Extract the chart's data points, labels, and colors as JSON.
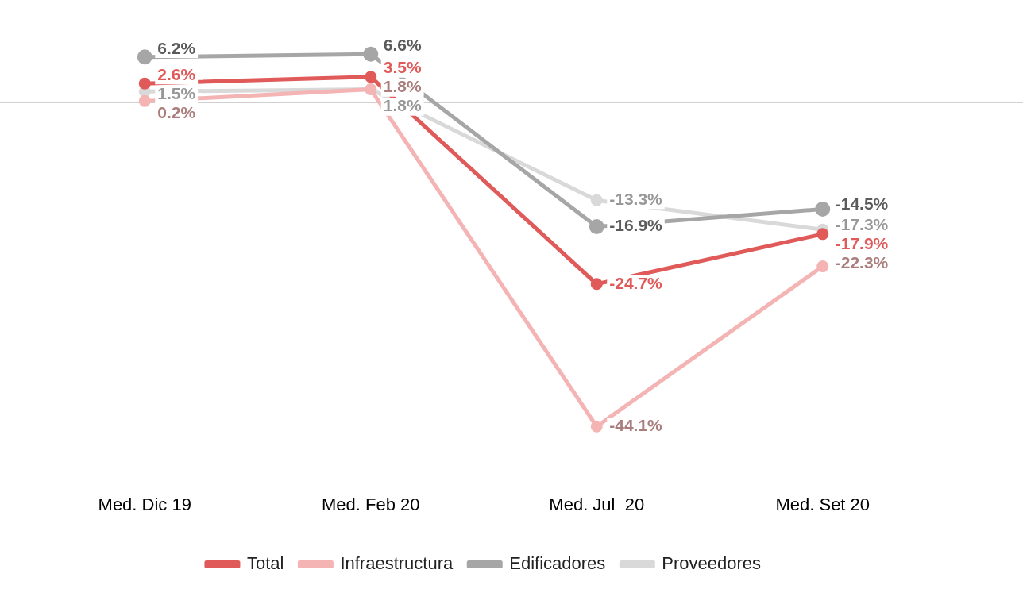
{
  "chart_data": {
    "type": "line",
    "categories": [
      "Med. Dic 19",
      "Med. Feb 20",
      "Med. Jul  20",
      "Med. Set 20"
    ],
    "series": [
      {
        "name": "Total",
        "color": "#e05a5a",
        "values": [
          2.6,
          3.5,
          -24.7,
          -17.9
        ],
        "value_labels": [
          "2.6%",
          "3.5%",
          "-24.7%",
          "-17.9%"
        ]
      },
      {
        "name": "Infraestructura",
        "color": "#f4b4b4",
        "values": [
          0.2,
          1.8,
          -44.1,
          -22.3
        ],
        "value_labels": [
          "0.2%",
          "1.8%",
          "-44.1%",
          "-22.3%"
        ]
      },
      {
        "name": "Edificadores",
        "color": "#a6a6a6",
        "values": [
          6.2,
          6.6,
          -16.9,
          -14.5
        ],
        "value_labels": [
          "6.2%",
          "6.6%",
          "-16.9%",
          "-14.5%"
        ]
      },
      {
        "name": "Proveedores",
        "color": "#d9d9d9",
        "values": [
          1.5,
          1.8,
          -13.3,
          -17.3
        ],
        "value_labels": [
          "1.5%",
          "1.8%",
          "-13.3%",
          "-17.3%"
        ]
      }
    ],
    "ref_lines": [
      {
        "axis": "y",
        "value": 0,
        "color": "#d0d0d0"
      }
    ],
    "legend": "bottom",
    "marker": "circle",
    "grid": false,
    "tick_labels": "x",
    "line_style": "solid"
  }
}
